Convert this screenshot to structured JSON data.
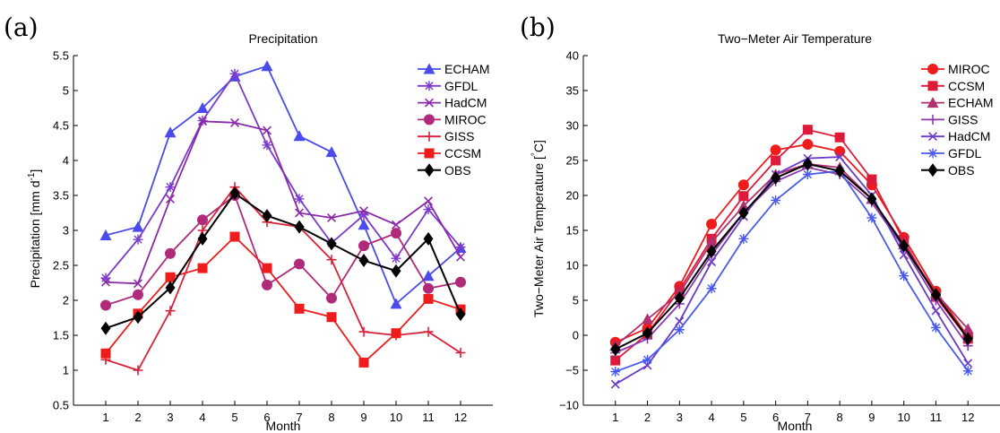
{
  "chart_data": [
    {
      "panel_label": "(a)",
      "type": "line",
      "title": "Precipitation",
      "xlabel": "Month",
      "ylabel": "Precipitation [mm d",
      "ylabel_sup": "-1",
      "ylabel_end": "]",
      "x": [
        1,
        2,
        3,
        4,
        5,
        6,
        7,
        8,
        9,
        10,
        11,
        12
      ],
      "xticks": [
        "1",
        "2",
        "3",
        "4",
        "5",
        "6",
        "7",
        "8",
        "9",
        "10",
        "11",
        "12"
      ],
      "ylim": [
        0.5,
        5.5
      ],
      "yticks": [
        "0.5",
        "1",
        "1.5",
        "2",
        "2.5",
        "3",
        "3.5",
        "4",
        "4.5",
        "5",
        "5.5"
      ],
      "legend_position": "top-right",
      "series": [
        {
          "name": "ECHAM",
          "color": "#4a4aee",
          "marker": "triangle",
          "values": [
            2.93,
            3.05,
            4.4,
            4.75,
            5.2,
            5.35,
            4.35,
            4.12,
            3.08,
            1.95,
            2.35,
            2.75
          ]
        },
        {
          "name": "GFDL",
          "color": "#7a3acc",
          "marker": "asterisk",
          "values": [
            2.32,
            2.87,
            3.62,
            4.57,
            5.24,
            4.22,
            3.45,
            2.82,
            3.22,
            2.6,
            3.3,
            2.76
          ]
        },
        {
          "name": "HadCM",
          "color": "#8a2aa8",
          "marker": "x",
          "values": [
            2.26,
            2.24,
            3.45,
            4.56,
            4.54,
            4.43,
            3.25,
            3.18,
            3.28,
            3.08,
            3.42,
            2.62
          ]
        },
        {
          "name": "MIROC",
          "color": "#b02a7a",
          "marker": "circle",
          "values": [
            1.93,
            2.08,
            2.67,
            3.15,
            3.5,
            2.22,
            2.52,
            2.03,
            2.78,
            2.96,
            2.17,
            2.26
          ]
        },
        {
          "name": "GISS",
          "color": "#d8223a",
          "marker": "plus",
          "values": [
            1.15,
            1.0,
            1.85,
            3.0,
            3.62,
            3.12,
            3.05,
            2.58,
            1.55,
            1.5,
            1.55,
            1.25
          ]
        },
        {
          "name": "CCSM",
          "color": "#ee1c1c",
          "marker": "square",
          "values": [
            1.24,
            1.81,
            2.33,
            2.46,
            2.91,
            2.46,
            1.88,
            1.76,
            1.11,
            1.53,
            2.02,
            1.87
          ]
        },
        {
          "name": "OBS",
          "color": "#000000",
          "marker": "diamond",
          "values": [
            1.6,
            1.76,
            2.18,
            2.88,
            3.53,
            3.21,
            3.05,
            2.81,
            2.57,
            2.42,
            2.88,
            1.8
          ]
        }
      ]
    },
    {
      "panel_label": "(b)",
      "type": "line",
      "title": "Two−Meter Air Temperature",
      "xlabel": "Month",
      "ylabel": "Two−Meter Air Temperature [",
      "ylabel_deg": "°",
      "ylabel_end": "C]",
      "x": [
        1,
        2,
        3,
        4,
        5,
        6,
        7,
        8,
        9,
        10,
        11,
        12
      ],
      "xticks": [
        "1",
        "2",
        "3",
        "4",
        "5",
        "6",
        "7",
        "8",
        "9",
        "10",
        "11",
        "12"
      ],
      "ylim": [
        -10,
        40
      ],
      "yticks": [
        "−10",
        "−5",
        "0",
        "5",
        "10",
        "15",
        "20",
        "25",
        "30",
        "35",
        "40"
      ],
      "legend_position": "top-right",
      "series": [
        {
          "name": "MIROC",
          "color": "#ee1c1c",
          "marker": "circle",
          "values": [
            -1.0,
            1.0,
            7.0,
            15.9,
            21.5,
            26.5,
            27.3,
            26.3,
            21.5,
            14.0,
            6.3,
            -0.2
          ]
        },
        {
          "name": "CCSM",
          "color": "#de1a3a",
          "marker": "square",
          "values": [
            -3.6,
            0.2,
            6.5,
            13.8,
            19.9,
            25.0,
            29.4,
            28.3,
            22.3,
            13.5,
            5.5,
            -0.5
          ]
        },
        {
          "name": "ECHAM",
          "color": "#b03070",
          "marker": "triangle",
          "values": [
            -1.5,
            2.3,
            6.0,
            13.3,
            18.5,
            23.0,
            24.5,
            24.0,
            19.5,
            13.0,
            6.0,
            0.9
          ]
        },
        {
          "name": "GISS",
          "color": "#8a3aaa",
          "marker": "plus",
          "values": [
            -2.5,
            -0.5,
            4.5,
            11.5,
            17.5,
            22.0,
            24.0,
            23.0,
            19.0,
            12.5,
            5.0,
            -1.5
          ]
        },
        {
          "name": "HadCM",
          "color": "#6a3ac8",
          "marker": "x",
          "values": [
            -7.0,
            -4.3,
            2.0,
            10.5,
            17.0,
            23.0,
            25.3,
            25.5,
            20.0,
            11.5,
            3.5,
            -4.0
          ]
        },
        {
          "name": "GFDL",
          "color": "#4a5aee",
          "marker": "asterisk",
          "values": [
            -5.2,
            -3.5,
            0.8,
            6.7,
            13.8,
            19.3,
            23.0,
            23.5,
            16.8,
            8.5,
            1.1,
            -5.1
          ]
        },
        {
          "name": "OBS",
          "color": "#000000",
          "marker": "diamond",
          "values": [
            -2.0,
            0.3,
            5.3,
            12.0,
            17.5,
            22.5,
            24.5,
            23.5,
            19.5,
            12.8,
            5.8,
            -0.5
          ]
        }
      ]
    }
  ]
}
